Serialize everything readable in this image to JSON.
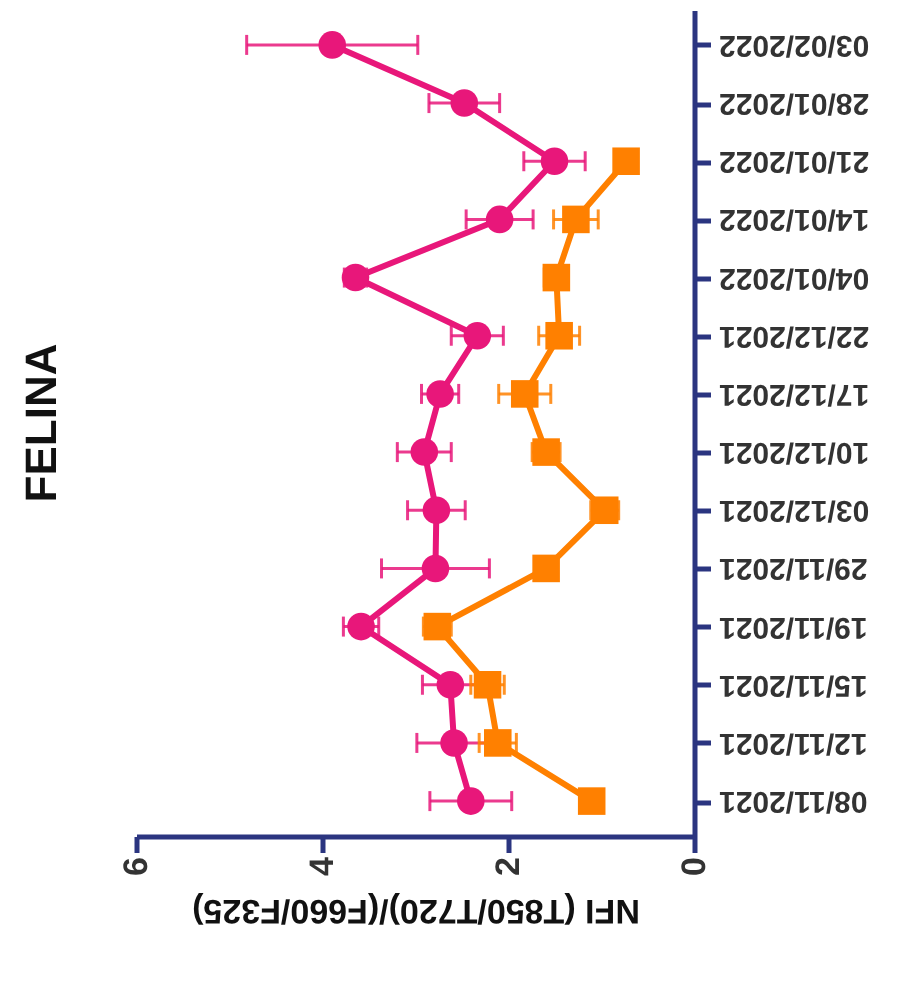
{
  "chart_data": {
    "type": "line",
    "orientation": "horizontal",
    "title": "FELINA",
    "xlabel": "NFI (T850/T720)/(F660/F325)",
    "categories": [
      "03/02/2022",
      "28/01/2022",
      "21/01/2022",
      "14/01/2022",
      "04/01/2022",
      "22/12/2021",
      "17/12/2021",
      "10/12/2021",
      "03/12/2021",
      "29/11/2021",
      "19/11/2021",
      "15/11/2021",
      "12/11/2021",
      "08/11/2021"
    ],
    "series": [
      {
        "color": "#e8177a",
        "marker": "circle",
        "values": [
          3.89,
          2.47,
          1.5,
          2.09,
          3.64,
          2.33,
          2.73,
          2.9,
          2.77,
          2.78,
          3.58,
          2.62,
          2.58,
          2.4
        ],
        "errors": [
          0.92,
          0.38,
          0.33,
          0.36,
          0.12,
          0.28,
          0.2,
          0.29,
          0.31,
          0.58,
          0.19,
          0.3,
          0.4,
          0.44
        ]
      },
      {
        "color": "#ff8000",
        "marker": "square",
        "values": [
          null,
          null,
          0.73,
          1.27,
          1.48,
          1.45,
          1.82,
          1.59,
          0.96,
          1.59,
          2.76,
          2.22,
          2.11,
          1.1
        ],
        "errors": [
          null,
          null,
          null,
          0.24,
          0.13,
          0.22,
          0.28,
          0.15,
          0.15,
          0.1,
          0.15,
          0.18,
          0.2,
          null
        ]
      }
    ],
    "xlim": [
      6,
      0
    ],
    "xticks": [
      6,
      4,
      2,
      0
    ],
    "grid": false,
    "line_style": "solid"
  }
}
